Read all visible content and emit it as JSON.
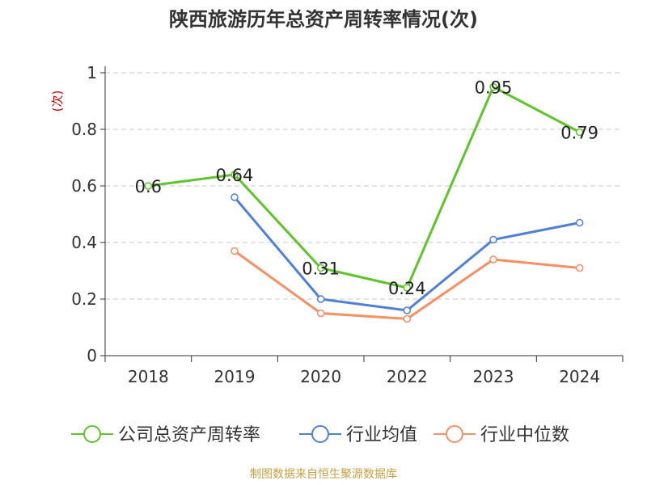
{
  "title": "陕西旅游历年总资产周转率情况(次)",
  "footer": "制图数据来自恒生聚源数据库",
  "colors": {
    "company": "#5ec429",
    "industry_avg": "#4f80d7",
    "industry_median": "#f59064",
    "grid": "#c8c8c8",
    "axis": "#333333",
    "unit_label": "#cc0000"
  },
  "chart_data": {
    "type": "line",
    "title": "陕西旅游历年总资产周转率情况(次)",
    "ylabel": "(次)",
    "xlabel": "",
    "categories": [
      "2018",
      "2019",
      "2020",
      "2022",
      "2023",
      "2024"
    ],
    "ylim": [
      0,
      1
    ],
    "yticks": [
      "0",
      "0.2",
      "0.4",
      "0.6",
      "0.8",
      "1"
    ],
    "grid": true,
    "legend_position": "bottom",
    "series": [
      {
        "name": "公司总资产周转率",
        "values": [
          0.6,
          0.64,
          0.31,
          0.24,
          0.95,
          0.79
        ],
        "labels": [
          "0.6",
          "0.64",
          "0.31",
          "0.24",
          "0.95",
          "0.79"
        ]
      },
      {
        "name": "行业均值",
        "values": [
          null,
          0.56,
          0.2,
          0.16,
          0.41,
          0.47
        ]
      },
      {
        "name": "行业中位数",
        "values": [
          null,
          0.37,
          0.15,
          0.13,
          0.34,
          0.31
        ]
      }
    ]
  }
}
